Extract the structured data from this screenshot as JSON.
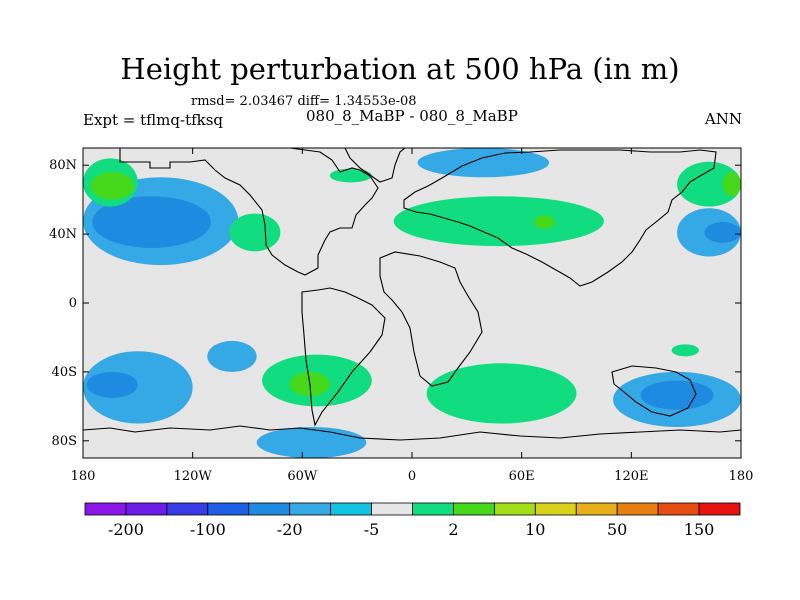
{
  "chart_data": {
    "type": "contour-map",
    "title": "Height perturbation at 500 hPa (in m)",
    "stats_line": "rmsd= 2.03467 diff= 1.34553e-08",
    "subtitle": "080_8_MaBP - 080_8_MaBP",
    "left_label": "Expt = tflmq-tfksq",
    "right_label": "ANN",
    "x_ticks": [
      {
        "lon": -180,
        "label": "180"
      },
      {
        "lon": -120,
        "label": "120W"
      },
      {
        "lon": -60,
        "label": "60W"
      },
      {
        "lon": 0,
        "label": "0"
      },
      {
        "lon": 60,
        "label": "60E"
      },
      {
        "lon": 120,
        "label": "120E"
      },
      {
        "lon": 180,
        "label": "180"
      }
    ],
    "y_ticks": [
      {
        "lat": 80,
        "label": "80N"
      },
      {
        "lat": 40,
        "label": "40N"
      },
      {
        "lat": 0,
        "label": "0"
      },
      {
        "lat": -40,
        "label": "40S"
      },
      {
        "lat": -80,
        "label": "80S"
      }
    ],
    "xlim": [
      -180,
      180
    ],
    "ylim": [
      -90,
      90
    ],
    "colorbar": {
      "colors": [
        "#8a17e8",
        "#6a1ee6",
        "#3b3be6",
        "#1c5fe6",
        "#1e8be0",
        "#35a8e6",
        "#12c3e3",
        "#e6e6e6",
        "#12dc80",
        "#46d81a",
        "#a4de18",
        "#d9d21c",
        "#e6b01a",
        "#e67e12",
        "#e64d12",
        "#e61212"
      ],
      "labels": [
        {
          "after_index": 0,
          "text": "-200"
        },
        {
          "after_index": 2,
          "text": "-100"
        },
        {
          "after_index": 4,
          "text": "-20"
        },
        {
          "after_index": 6,
          "text": "-5"
        },
        {
          "after_index": 8,
          "text": "2"
        },
        {
          "after_index": 10,
          "text": "10"
        },
        {
          "after_index": 12,
          "text": "50"
        },
        {
          "after_index": 14,
          "text": "150"
        }
      ]
    },
    "regions": [
      {
        "level": 2,
        "color": "#35a8e6",
        "lon": [
          -180,
          -95
        ],
        "lat": [
          22,
          73
        ],
        "name": "north-pacific negative"
      },
      {
        "level": 3,
        "color": "#1e8be0",
        "lon": [
          -175,
          -110
        ],
        "lat": [
          32,
          62
        ],
        "name": "north-pacific core"
      },
      {
        "level": 4,
        "color": "#12dc80",
        "lon": [
          -180,
          -150
        ],
        "lat": [
          56,
          84
        ],
        "name": "alaska positive"
      },
      {
        "level": 5,
        "color": "#46d81a",
        "lon": [
          -176,
          -152
        ],
        "lat": [
          60,
          76
        ],
        "name": "alaska core"
      },
      {
        "level": 6,
        "color": "#12dc80",
        "lon": [
          -100,
          -72
        ],
        "lat": [
          30,
          52
        ],
        "name": "north america positive"
      },
      {
        "level": 7,
        "color": "#12dc80",
        "lon": [
          -45,
          -22
        ],
        "lat": [
          70,
          78
        ],
        "name": "greenland positive"
      },
      {
        "level": 8,
        "color": "#12dc80",
        "lon": [
          -10,
          105
        ],
        "lat": [
          33,
          62
        ],
        "name": "eurasia positive"
      },
      {
        "level": 9,
        "color": "#46d81a",
        "lon": [
          67,
          78
        ],
        "lat": [
          43,
          51
        ],
        "name": "eurasia core"
      },
      {
        "level": 10,
        "color": "#35a8e6",
        "lon": [
          3,
          75
        ],
        "lat": [
          73,
          90
        ],
        "name": "arctic negative"
      },
      {
        "level": 11,
        "color": "#12dc80",
        "lon": [
          145,
          180
        ],
        "lat": [
          56,
          82
        ],
        "name": "east asia positive"
      },
      {
        "level": 12,
        "color": "#46d81a",
        "lon": [
          170,
          180
        ],
        "lat": [
          62,
          76
        ],
        "name": "east asia core"
      },
      {
        "level": 13,
        "color": "#35a8e6",
        "lon": [
          145,
          180
        ],
        "lat": [
          27,
          55
        ],
        "name": "west pacific negative"
      },
      {
        "level": 14,
        "color": "#1e8be0",
        "lon": [
          160,
          180
        ],
        "lat": [
          35,
          47
        ],
        "name": "west pacific core"
      },
      {
        "level": 15,
        "color": "#35a8e6",
        "lon": [
          -180,
          -120
        ],
        "lat": [
          -70,
          -28
        ],
        "name": "south pacific negative"
      },
      {
        "level": 16,
        "color": "#1e8be0",
        "lon": [
          -178,
          -150
        ],
        "lat": [
          -55,
          -40
        ],
        "name": "south pacific core"
      },
      {
        "level": 17,
        "color": "#35a8e6",
        "lon": [
          -112,
          -85
        ],
        "lat": [
          -40,
          -22
        ],
        "name": "south pacific arm"
      },
      {
        "level": 18,
        "color": "#12dc80",
        "lon": [
          -82,
          -22
        ],
        "lat": [
          -60,
          -30
        ],
        "name": "south america positive"
      },
      {
        "level": 19,
        "color": "#46d81a",
        "lon": [
          -67,
          -45
        ],
        "lat": [
          -54,
          -40
        ],
        "name": "south america core"
      },
      {
        "level": 20,
        "color": "#12dc80",
        "lon": [
          8,
          90
        ],
        "lat": [
          -70,
          -35
        ],
        "name": "indian ocean positive"
      },
      {
        "level": 21,
        "color": "#35a8e6",
        "lon": [
          -85,
          -25
        ],
        "lat": [
          -90,
          -72
        ],
        "name": "antarctic negative"
      },
      {
        "level": 22,
        "color": "#35a8e6",
        "lon": [
          110,
          180
        ],
        "lat": [
          -72,
          -40
        ],
        "name": "southeast negative"
      },
      {
        "level": 23,
        "color": "#1e8be0",
        "lon": [
          125,
          165
        ],
        "lat": [
          -62,
          -45
        ],
        "name": "southeast core"
      },
      {
        "level": 24,
        "color": "#12dc80",
        "lon": [
          142,
          157
        ],
        "lat": [
          -31,
          -24
        ],
        "name": "small positive"
      }
    ]
  }
}
